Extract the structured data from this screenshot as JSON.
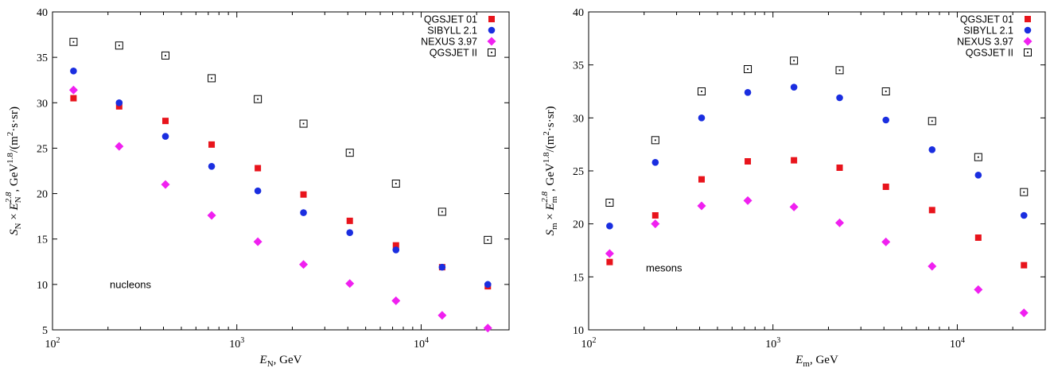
{
  "colors": {
    "QGSJET 01": "#e8141c",
    "SIBYLL 2.1": "#1a2ee0",
    "NEXUS 3.97": "#f020f0",
    "QGSJET II": "#000000"
  },
  "chart_data": [
    {
      "type": "scatter",
      "x_scale": "log",
      "xlim": [
        100,
        30000
      ],
      "ylim": [
        5,
        40
      ],
      "y_ticks": [
        5,
        10,
        15,
        20,
        25,
        30,
        35,
        40
      ],
      "x_tick_labels": [
        {
          "value": 100,
          "base": "10",
          "exp": "2"
        },
        {
          "value": 1000,
          "base": "10",
          "exp": "3"
        },
        {
          "value": 10000,
          "base": "10",
          "exp": "4"
        }
      ],
      "xlabel": {
        "var": "E",
        "sub": "N",
        "unit": ", GeV"
      },
      "ylabel": {
        "S": "S",
        "S_sub": "N",
        "times": " × ",
        "E": "E",
        "E_sub": "N",
        "E_sup": "2.8",
        "mid": ", GeV",
        "mid_sup": "1.8",
        "tail": "/(m",
        "tail_sup": "2",
        "end": "·s·sr)"
      },
      "annotation": "nucleons",
      "legend_position": "top-right",
      "x": [
        130,
        230,
        410,
        730,
        1300,
        2300,
        4100,
        7300,
        13000,
        23000
      ],
      "series": [
        {
          "name": "QGSJET 01",
          "marker": "square-filled",
          "values": [
            30.5,
            29.6,
            28.0,
            25.4,
            22.8,
            19.9,
            17.0,
            14.3,
            11.9,
            9.8
          ]
        },
        {
          "name": "SIBYLL 2.1",
          "marker": "circle",
          "values": [
            33.5,
            30.0,
            26.3,
            23.0,
            20.3,
            17.9,
            15.7,
            13.8,
            11.9,
            10.0
          ]
        },
        {
          "name": "NEXUS 3.97",
          "marker": "diamond",
          "values": [
            31.4,
            25.2,
            21.0,
            17.6,
            14.7,
            12.2,
            10.1,
            8.2,
            6.6,
            5.2
          ]
        },
        {
          "name": "QGSJET II",
          "marker": "square-dotted",
          "values": [
            36.7,
            36.3,
            35.2,
            32.7,
            30.4,
            27.7,
            24.5,
            21.1,
            18.0,
            14.9
          ]
        }
      ]
    },
    {
      "type": "scatter",
      "x_scale": "log",
      "xlim": [
        100,
        30000
      ],
      "ylim": [
        10,
        40
      ],
      "y_ticks": [
        10,
        15,
        20,
        25,
        30,
        35,
        40
      ],
      "x_tick_labels": [
        {
          "value": 100,
          "base": "10",
          "exp": "2"
        },
        {
          "value": 1000,
          "base": "10",
          "exp": "3"
        },
        {
          "value": 10000,
          "base": "10",
          "exp": "4"
        }
      ],
      "xlabel": {
        "var": "E",
        "sub": "m",
        "unit": ", GeV"
      },
      "ylabel": {
        "S": "S",
        "S_sub": "m",
        "times": " × ",
        "E": "E",
        "E_sub": "m",
        "E_sup": "2.8",
        "mid": ", GeV",
        "mid_sup": "1.8",
        "tail": "/(m",
        "tail_sup": "2",
        "end": "·s·sr)"
      },
      "annotation": "mesons",
      "legend_position": "top-right",
      "x": [
        130,
        230,
        410,
        730,
        1300,
        2300,
        4100,
        7300,
        13000,
        23000
      ],
      "series": [
        {
          "name": "QGSJET 01",
          "marker": "square-filled",
          "values": [
            16.4,
            20.8,
            24.2,
            25.9,
            26.0,
            25.3,
            23.5,
            21.3,
            18.7,
            16.1
          ]
        },
        {
          "name": "SIBYLL 2.1",
          "marker": "circle",
          "values": [
            19.8,
            25.8,
            30.0,
            32.4,
            32.9,
            31.9,
            29.8,
            27.0,
            24.6,
            20.8
          ]
        },
        {
          "name": "NEXUS 3.97",
          "marker": "diamond",
          "values": [
            17.2,
            20.0,
            21.7,
            22.2,
            21.6,
            20.1,
            18.3,
            16.0,
            13.8,
            11.6
          ]
        },
        {
          "name": "QGSJET II",
          "marker": "square-dotted",
          "values": [
            22.0,
            27.9,
            32.5,
            34.6,
            35.4,
            34.5,
            32.5,
            29.7,
            26.3,
            23.0
          ]
        }
      ]
    }
  ]
}
